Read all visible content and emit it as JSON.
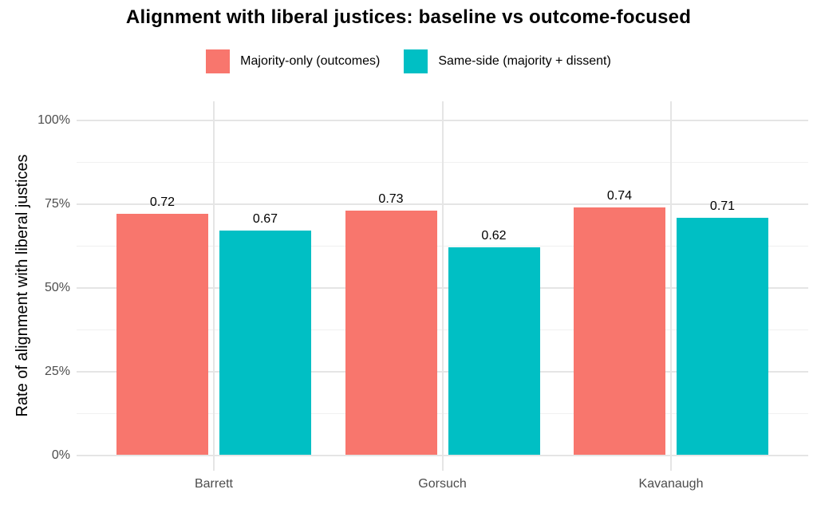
{
  "chart_data": {
    "type": "bar",
    "title": "Alignment with liberal justices: baseline vs outcome-focused",
    "xlabel": "",
    "ylabel": "Rate of alignment with liberal justices",
    "categories": [
      "Barrett",
      "Gorsuch",
      "Kavanaugh"
    ],
    "series": [
      {
        "name": "Majority-only (outcomes)",
        "color": "#F8766D",
        "values": [
          0.72,
          0.73,
          0.74
        ]
      },
      {
        "name": "Same-side (majority + dissent)",
        "color": "#00BFC4",
        "values": [
          0.67,
          0.62,
          0.71
        ]
      }
    ],
    "bar_value_labels": [
      "0.72",
      "0.67",
      "0.73",
      "0.62",
      "0.74",
      "0.71"
    ],
    "ylim": [
      0,
      1.0
    ],
    "y_tick_values": [
      0,
      0.25,
      0.5,
      0.75,
      1.0
    ],
    "y_tick_labels": [
      "0%",
      "25%",
      "50%",
      "75%",
      "100%"
    ],
    "y_minor_tick_values": [
      0.125,
      0.375,
      0.625,
      0.875
    ],
    "grid": "major and minor horizontal, vertical at category centers",
    "legend_position": "top",
    "colors": {
      "grid_major": "#e5e5e5",
      "grid_minor": "#f0f0f0",
      "axis_text": "#4d4d4d",
      "text": "#000000",
      "background": "#ffffff"
    }
  }
}
